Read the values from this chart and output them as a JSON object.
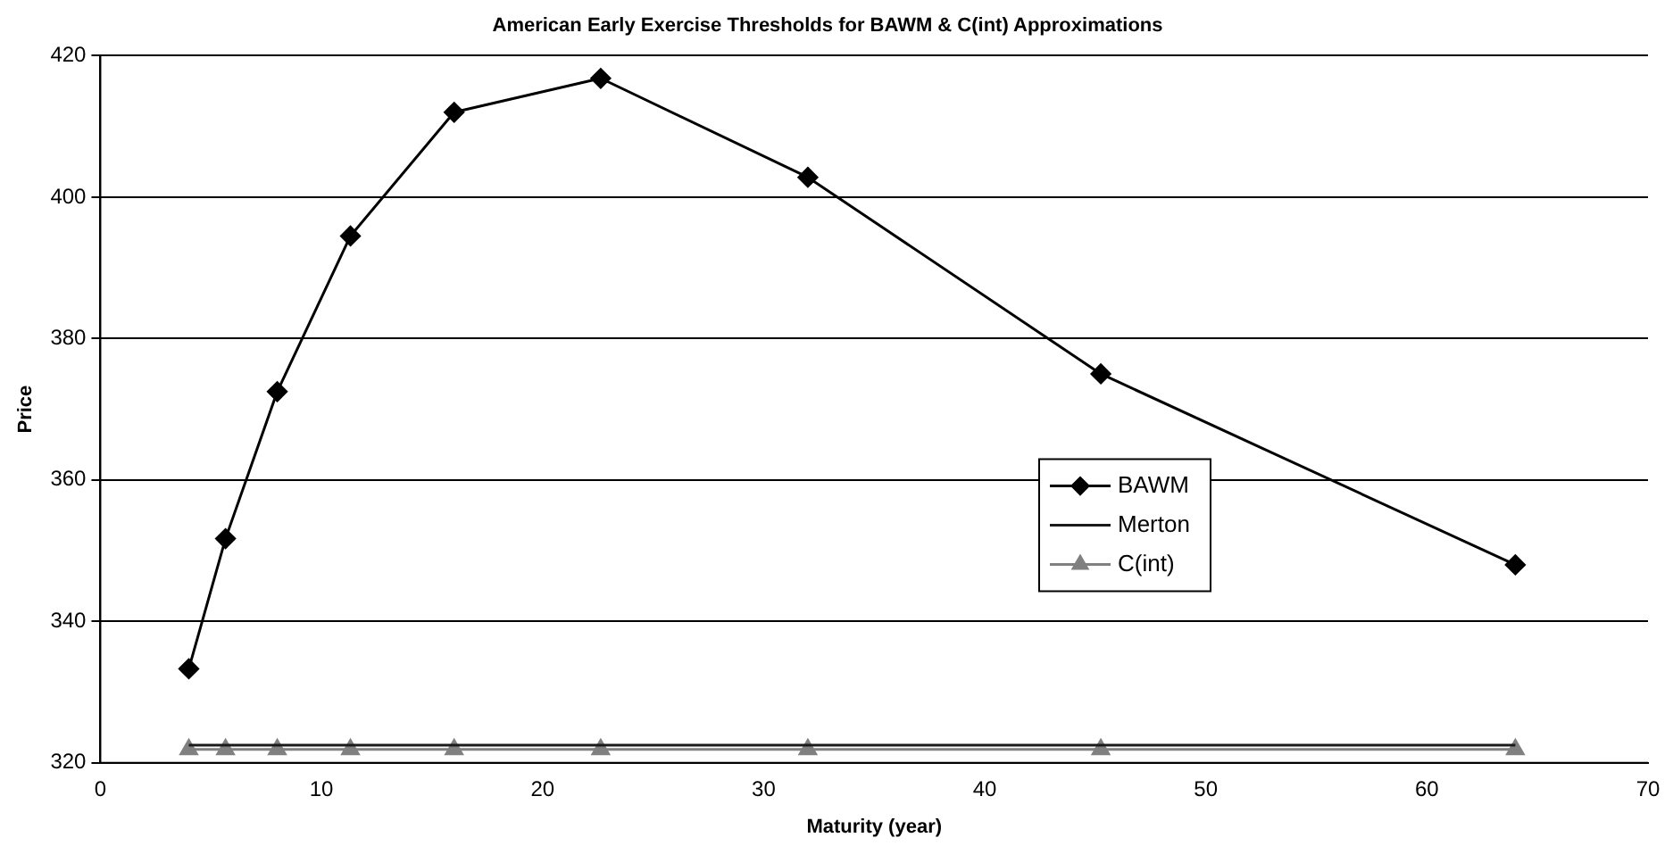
{
  "chart_data": {
    "type": "line",
    "title": "American Early Exercise Thresholds for BAWM & C(int) Approximations",
    "xlabel": "Maturity (year)",
    "ylabel": "Price",
    "x": [
      4,
      5.66,
      8,
      11.31,
      16,
      22.63,
      32,
      45.25,
      64
    ],
    "series": [
      {
        "name": "BAWM",
        "color": "#000000",
        "marker": "diamond",
        "values": [
          333.3,
          351.7,
          372.5,
          394.5,
          412,
          416.8,
          402.8,
          375,
          348
        ]
      },
      {
        "name": "Merton",
        "color": "#1a1a1a",
        "marker": "none",
        "values": [
          322.5,
          322.5,
          322.5,
          322.5,
          322.5,
          322.5,
          322.5,
          322.5,
          322.5
        ]
      },
      {
        "name": "C(int)",
        "color": "#808080",
        "marker": "triangle",
        "values": [
          321.9,
          321.9,
          321.9,
          321.9,
          321.9,
          321.9,
          321.9,
          321.9,
          321.9
        ]
      }
    ],
    "xlim": [
      0,
      70
    ],
    "xticks": [
      0,
      10,
      20,
      30,
      40,
      50,
      60,
      70
    ],
    "ylim": [
      320,
      420
    ],
    "yticks": [
      320,
      340,
      360,
      380,
      400,
      420
    ],
    "grid": "y",
    "legend": "right",
    "line_style": "solid"
  }
}
